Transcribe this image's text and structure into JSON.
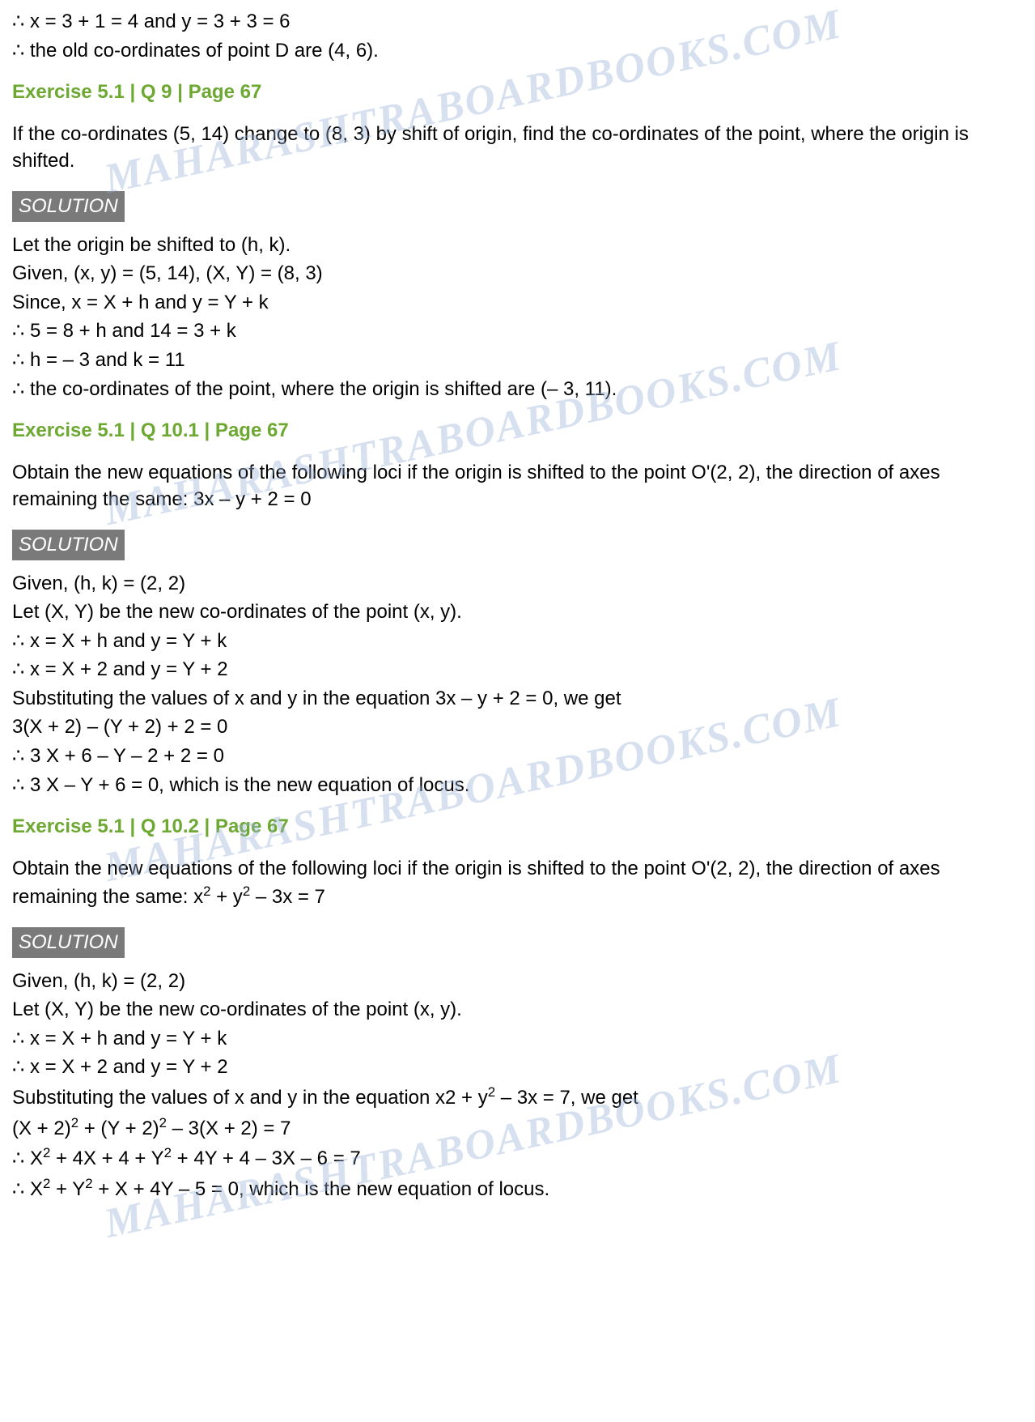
{
  "watermark_text": "MAHARASHTRABOARDBOOKS.COM",
  "colors": {
    "heading_color": "#6ca832",
    "text_color": "#000000",
    "solution_bg": "#7a7a7a",
    "solution_text": "#ffffff",
    "watermark_color": "#9bb3d9",
    "background": "#ffffff"
  },
  "typography": {
    "body_fontsize": 24,
    "heading_fontsize": 24,
    "watermark_fontsize": 52,
    "font_family": "Arial"
  },
  "intro_lines": [
    "∴ x = 3 + 1 = 4 and y = 3 + 3 = 6",
    "∴ the old co-ordinates of point D are (4, 6)."
  ],
  "sections": [
    {
      "heading": "Exercise 5.1 | Q 9 | Page 67",
      "question": "If the co-ordinates (5, 14) change to (8, 3) by shift of origin, find the co-ordinates of the point, where the origin is shifted.",
      "solution_label": "SOLUTION",
      "solution_lines": [
        "Let the origin be shifted to (h, k).",
        "Given, (x, y) = (5, 14), (X, Y) = (8, 3)",
        "Since, x = X + h and y = Y + k",
        "∴ 5 = 8 + h and 14 = 3 + k",
        "∴ h = – 3 and k = 11",
        "∴ the co-ordinates of the point, where the origin is shifted are (– 3, 11)."
      ]
    },
    {
      "heading": "Exercise 5.1 | Q 10.1 | Page 67",
      "question": "Obtain the new equations of the following loci if the origin is shifted to the point O'(2, 2), the direction of axes remaining the same: 3x – y + 2 = 0",
      "solution_label": "SOLUTION",
      "solution_lines": [
        "Given, (h, k) = (2, 2)",
        "Let (X, Y) be the new co-ordinates of the point (x, y).",
        "∴ x = X + h and y = Y + k",
        "∴ x = X + 2 and y = Y + 2",
        "Substituting the values of x and y in the equation 3x – y + 2 = 0, we get",
        "3(X + 2) – (Y + 2) + 2 = 0",
        "∴ 3 X + 6 – Y – 2 + 2 = 0",
        "∴ 3 X – Y + 6 = 0, which is the new equation of locus."
      ]
    },
    {
      "heading": "Exercise 5.1 | Q 10.2 | Page 67",
      "question_html": "Obtain the new equations of the following loci if the origin is shifted to the point O'(2, 2), the direction of axes remaining the same: x<sup>2</sup> + y<sup>2</sup> – 3x = 7",
      "solution_label": "SOLUTION",
      "solution_lines_html": [
        "Given, (h, k) = (2, 2)",
        "Let (X, Y) be the new co-ordinates of the point (x, y).",
        "∴ x = X + h and y = Y + k",
        "∴ x = X + 2 and y = Y + 2",
        "Substituting the values of x and y in the equation x2 + y<sup>2</sup> – 3x = 7, we get",
        "(X + 2)<sup>2</sup> + (Y + 2)<sup>2</sup> – 3(X + 2) = 7",
        "∴ X<sup>2</sup> + 4X + 4 + Y<sup>2</sup> + 4Y + 4 – 3X – 6 = 7",
        "∴ X<sup>2</sup> + Y<sup>2</sup> + X + 4Y – 5 = 0, which is the new equation of locus."
      ]
    }
  ]
}
